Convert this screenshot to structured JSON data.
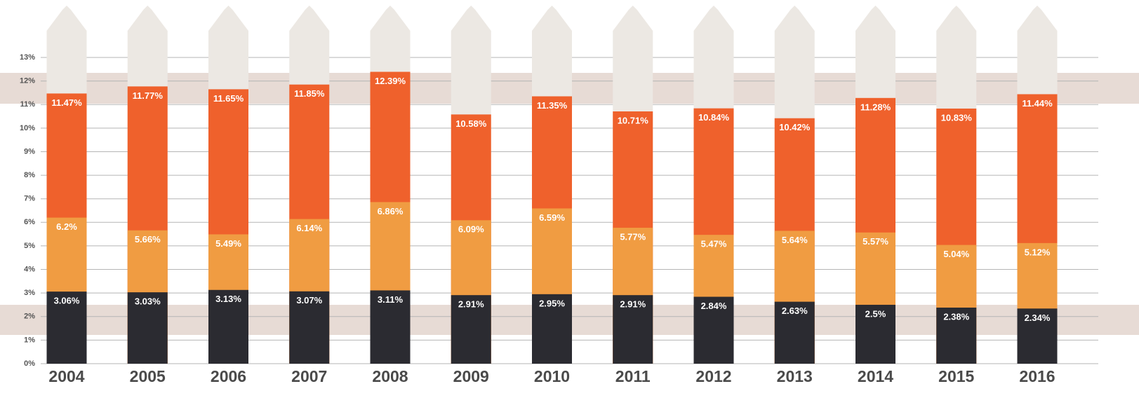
{
  "chart_data": {
    "type": "bar",
    "categories": [
      "2004",
      "2005",
      "2006",
      "2007",
      "2008",
      "2009",
      "2010",
      "2011",
      "2012",
      "2013",
      "2014",
      "2015",
      "2016"
    ],
    "series": [
      {
        "color": "#2b2b31",
        "values": [
          3.06,
          3.03,
          3.13,
          3.07,
          3.11,
          2.91,
          2.95,
          2.91,
          2.84,
          2.63,
          2.5,
          2.38,
          2.34
        ],
        "value_labels": [
          "3.06%",
          "3.03%",
          "3.13%",
          "3.07%",
          "3.11%",
          "2.91%",
          "2.95%",
          "2.91%",
          "2.84%",
          "2.63%",
          "2.5%",
          "2.38%",
          "2.34%"
        ]
      },
      {
        "color": "#f09c42",
        "values": [
          6.2,
          5.66,
          5.49,
          6.14,
          6.86,
          6.09,
          6.59,
          5.77,
          5.47,
          5.64,
          5.57,
          5.04,
          5.12
        ],
        "value_labels": [
          "6.2%",
          "5.66%",
          "5.49%",
          "6.14%",
          "6.86%",
          "6.09%",
          "6.59%",
          "5.77%",
          "5.47%",
          "5.64%",
          "5.57%",
          "5.04%",
          "5.12%"
        ]
      },
      {
        "color": "#ef612c",
        "values": [
          11.47,
          11.77,
          11.65,
          11.85,
          12.39,
          10.58,
          11.35,
          10.71,
          10.84,
          10.42,
          11.28,
          10.83,
          11.44
        ],
        "value_labels": [
          "11.47%",
          "11.77%",
          "11.65%",
          "11.85%",
          "12.39%",
          "10.58%",
          "11.35%",
          "10.71%",
          "10.84%",
          "10.42%",
          "11.28%",
          "10.83%",
          "11.44%"
        ]
      }
    ],
    "ylim": [
      0,
      13
    ],
    "yticks": [
      {
        "value": 0,
        "label": "0%"
      },
      {
        "value": 1,
        "label": "1%"
      },
      {
        "value": 2,
        "label": "2%"
      },
      {
        "value": 3,
        "label": "3%"
      },
      {
        "value": 4,
        "label": "4%"
      },
      {
        "value": 5,
        "label": "5%"
      },
      {
        "value": 6,
        "label": "6%"
      },
      {
        "value": 7,
        "label": "7%"
      },
      {
        "value": 8,
        "label": "8%"
      },
      {
        "value": 9,
        "label": "9%"
      },
      {
        "value": 10,
        "label": "10%"
      },
      {
        "value": 11,
        "label": "11%"
      },
      {
        "value": 12,
        "label": "12%"
      },
      {
        "value": 13,
        "label": "13%"
      }
    ],
    "grid": true
  }
}
